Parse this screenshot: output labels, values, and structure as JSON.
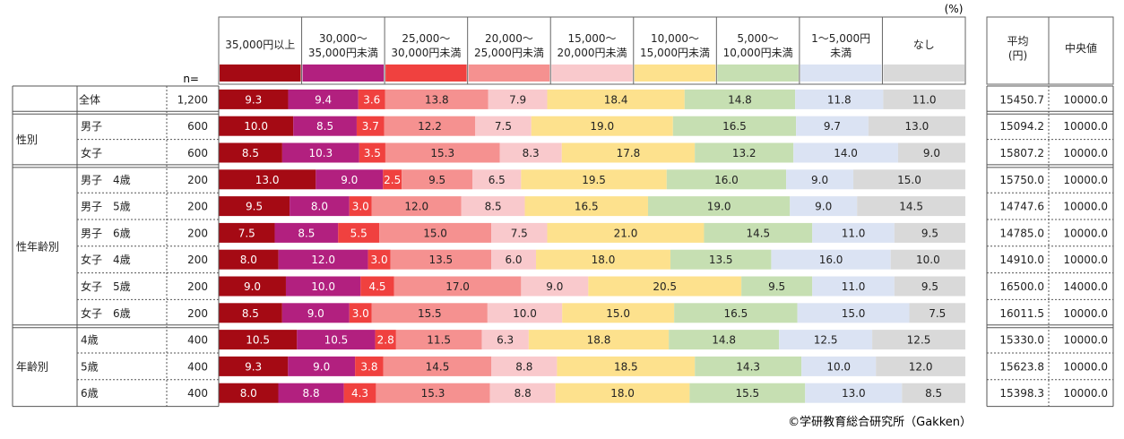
{
  "unit_label": "(%)",
  "n_label": "n=",
  "copyright": "©学研教育総合研究所（Gakken）",
  "legend": [
    {
      "label": [
        "35,000円以上"
      ],
      "color": "#a50a14"
    },
    {
      "label": [
        "30,000～",
        "35,000円未満"
      ],
      "color": "#b2207f"
    },
    {
      "label": [
        "25,000～",
        "30,000円未満"
      ],
      "color": "#f0413f"
    },
    {
      "label": [
        "20,000～",
        "25,000円未満"
      ],
      "color": "#f59190"
    },
    {
      "label": [
        "15,000～",
        "20,000円未満"
      ],
      "color": "#f9c9cc"
    },
    {
      "label": [
        "10,000～",
        "15,000円未満"
      ],
      "color": "#fde18d"
    },
    {
      "label": [
        "5,000～",
        "10,000円未満"
      ],
      "color": "#c6dfb2"
    },
    {
      "label": [
        "1～5,000円",
        "未満"
      ],
      "color": "#dbe3f3"
    },
    {
      "label": [
        "なし"
      ],
      "color": "#d9d9d9"
    }
  ],
  "stats_headers": [
    [
      "平均",
      "(円)"
    ],
    [
      "中央値"
    ]
  ],
  "chart_data": {
    "type": "bar",
    "orientation": "horizontal-stacked-100",
    "series_names": [
      "35,000円以上",
      "30,000～35,000円未満",
      "25,000～30,000円未満",
      "20,000～25,000円未満",
      "15,000～20,000円未満",
      "10,000～15,000円未満",
      "5,000～10,000円未満",
      "1～5,000円未満",
      "なし"
    ],
    "groups": [
      {
        "label": "",
        "rows": [
          {
            "label": "全体",
            "n": "1,200",
            "values": [
              9.3,
              9.4,
              3.6,
              13.8,
              7.9,
              18.4,
              14.8,
              11.8,
              11.0
            ],
            "mean": "15450.7",
            "median": "10000.0"
          }
        ]
      },
      {
        "label": "性別",
        "rows": [
          {
            "label": "男子",
            "n": "600",
            "values": [
              10.0,
              8.5,
              3.7,
              12.2,
              7.5,
              19.0,
              16.5,
              9.7,
              13.0
            ],
            "mean": "15094.2",
            "median": "10000.0"
          },
          {
            "label": "女子",
            "n": "600",
            "values": [
              8.5,
              10.3,
              3.5,
              15.3,
              8.3,
              17.8,
              13.2,
              14.0,
              9.0
            ],
            "mean": "15807.2",
            "median": "10000.0"
          }
        ]
      },
      {
        "label": "性年齢別",
        "rows": [
          {
            "label": "男子　4歳",
            "n": "200",
            "values": [
              13.0,
              9.0,
              2.5,
              9.5,
              6.5,
              19.5,
              16.0,
              9.0,
              15.0
            ],
            "mean": "15750.0",
            "median": "10000.0"
          },
          {
            "label": "男子　5歳",
            "n": "200",
            "values": [
              9.5,
              8.0,
              3.0,
              12.0,
              8.5,
              16.5,
              19.0,
              9.0,
              14.5
            ],
            "mean": "14747.6",
            "median": "10000.0"
          },
          {
            "label": "男子　6歳",
            "n": "200",
            "values": [
              7.5,
              8.5,
              5.5,
              15.0,
              7.5,
              21.0,
              14.5,
              11.0,
              9.5
            ],
            "mean": "14785.0",
            "median": "10000.0"
          },
          {
            "label": "女子　4歳",
            "n": "200",
            "values": [
              8.0,
              12.0,
              3.0,
              13.5,
              6.0,
              18.0,
              13.5,
              16.0,
              10.0
            ],
            "mean": "14910.0",
            "median": "10000.0"
          },
          {
            "label": "女子　5歳",
            "n": "200",
            "values": [
              9.0,
              10.0,
              4.5,
              17.0,
              9.0,
              20.5,
              9.5,
              11.0,
              9.5
            ],
            "mean": "16500.0",
            "median": "14000.0"
          },
          {
            "label": "女子　6歳",
            "n": "200",
            "values": [
              8.5,
              9.0,
              3.0,
              15.5,
              10.0,
              15.0,
              16.5,
              15.0,
              7.5
            ],
            "mean": "16011.5",
            "median": "10000.0"
          }
        ]
      },
      {
        "label": "年齢別",
        "rows": [
          {
            "label": "4歳",
            "n": "400",
            "values": [
              10.5,
              10.5,
              2.8,
              11.5,
              6.3,
              18.8,
              14.8,
              12.5,
              12.5
            ],
            "mean": "15330.0",
            "median": "10000.0"
          },
          {
            "label": "5歳",
            "n": "400",
            "values": [
              9.3,
              9.0,
              3.8,
              14.5,
              8.8,
              18.5,
              14.3,
              10.0,
              12.0
            ],
            "mean": "15623.8",
            "median": "10000.0"
          },
          {
            "label": "6歳",
            "n": "400",
            "values": [
              8.0,
              8.8,
              4.3,
              15.3,
              8.8,
              18.0,
              15.5,
              13.0,
              8.5
            ],
            "mean": "15398.3",
            "median": "10000.0"
          }
        ]
      }
    ]
  }
}
